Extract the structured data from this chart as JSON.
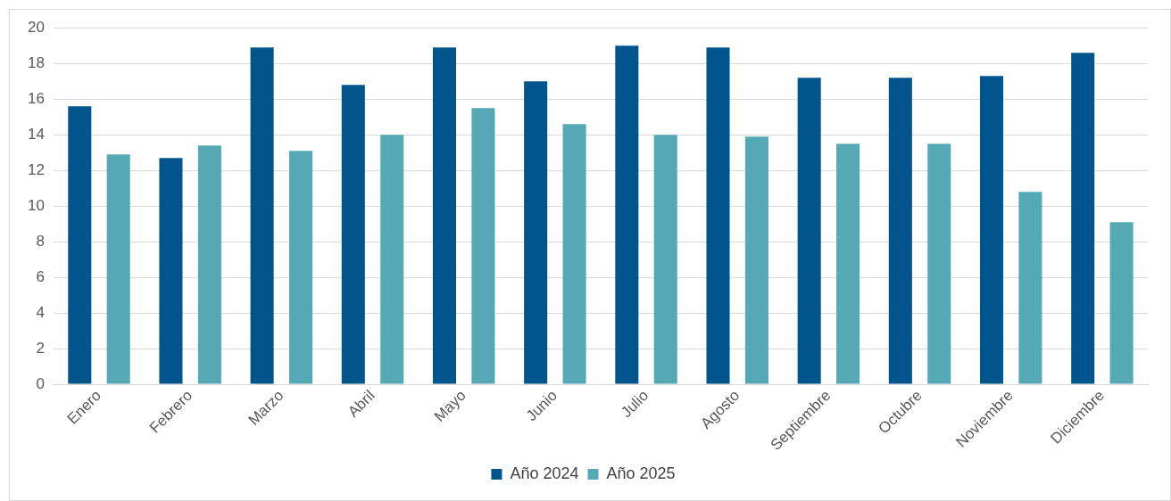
{
  "chart_data": {
    "type": "bar",
    "categories": [
      "Enero",
      "Febrero",
      "Marzo",
      "Abril",
      "Mayo",
      "Junio",
      "Julio",
      "Agosto",
      "Septiembre",
      "Octubre",
      "Noviembre",
      "Diciembre"
    ],
    "series": [
      {
        "name": "Año 2024",
        "color": "#00568c",
        "values": [
          15.6,
          12.7,
          18.9,
          16.8,
          18.9,
          17.0,
          19.0,
          18.9,
          17.2,
          17.2,
          17.3,
          18.6
        ]
      },
      {
        "name": "Año 2025",
        "color": "#55a9b4",
        "values": [
          12.9,
          13.4,
          13.1,
          14.0,
          15.5,
          14.6,
          14.0,
          13.9,
          13.5,
          13.5,
          10.8,
          9.1
        ]
      }
    ],
    "ylim": [
      0,
      20
    ],
    "yticks": [
      0,
      2,
      4,
      6,
      8,
      10,
      12,
      14,
      16,
      18,
      20
    ],
    "grid": "y",
    "legend": "bottom"
  }
}
